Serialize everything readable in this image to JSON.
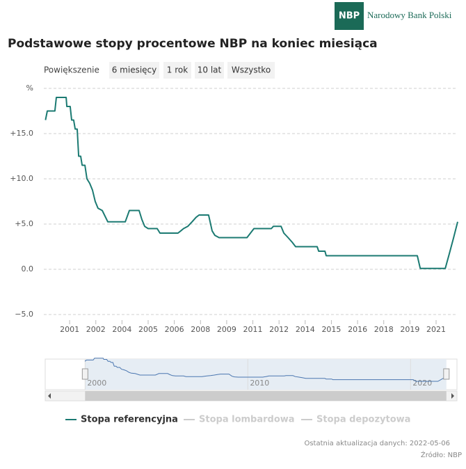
{
  "header": {
    "logo": "NBP",
    "bank_name": "Narodowy Bank Polski"
  },
  "chart_data": {
    "type": "line",
    "title": "Podstawowe stopy procentowe NBP na koniec miesiąca",
    "zoom": {
      "label": "Powiększenie",
      "buttons": [
        "6 miesięcy",
        "1 rok",
        "10 lat",
        "Wszystko"
      ]
    },
    "x": [
      1999.99,
      2000.09,
      2000.5,
      2000.58,
      2001.11,
      2001.15,
      2001.33,
      2001.41,
      2001.52,
      2001.6,
      2001.71,
      2001.79,
      2001.9,
      2001.98,
      2002.13,
      2002.24,
      2002.39,
      2002.54,
      2002.69,
      2002.84,
      2003.07,
      2003.37,
      2004.32,
      2004.54,
      2005.07,
      2005.22,
      2005.37,
      2005.56,
      2006.05,
      2006.2,
      2007.18,
      2007.33,
      2007.48,
      2007.71,
      2007.94,
      2008.16,
      2008.32,
      2008.84,
      2009.03,
      2009.18,
      2009.41,
      2010.92,
      2011.11,
      2011.3,
      2012.24,
      2012.35,
      2012.77,
      2012.92,
      2013.15,
      2013.37,
      2013.56,
      2014.73,
      2014.81,
      2015.15,
      2015.22,
      2020.16,
      2020.32,
      2021.68,
      2021.9,
      2022.13,
      2022.35
    ],
    "series": [
      {
        "name": "Stopa referencyjna",
        "color": "#1b7a72",
        "visible": true,
        "values": [
          16.5,
          17.5,
          17.5,
          19,
          19,
          18,
          18,
          16.5,
          16.5,
          15.5,
          15.5,
          12.5,
          12.5,
          11.5,
          11.5,
          10,
          9.5,
          8.75,
          7.5,
          6.75,
          6.5,
          5.25,
          5.25,
          6.5,
          6.5,
          5.5,
          4.75,
          4.5,
          4.5,
          4,
          4,
          4.25,
          4.5,
          4.75,
          5.25,
          5.75,
          6,
          6,
          4.25,
          3.75,
          3.5,
          3.5,
          4,
          4.5,
          4.5,
          4.75,
          4.75,
          4,
          3.5,
          3,
          2.5,
          2.5,
          2,
          2,
          1.5,
          1.5,
          0.1,
          0.1,
          1.75,
          3.5,
          5.25
        ]
      },
      {
        "name": "Stopa lombardowa",
        "color": "#cccccc",
        "visible": false
      },
      {
        "name": "Stopa depozytowa",
        "color": "#cccccc",
        "visible": false
      }
    ],
    "xlim": [
      1999.9,
      2022.35
    ],
    "xticks": [
      {
        "value": 2001.3,
        "label": "2001"
      },
      {
        "value": 2002.72,
        "label": "2002"
      },
      {
        "value": 2004.14,
        "label": "2004"
      },
      {
        "value": 2005.56,
        "label": "2005"
      },
      {
        "value": 2006.98,
        "label": "2006"
      },
      {
        "value": 2008.4,
        "label": "2008"
      },
      {
        "value": 2009.82,
        "label": "2009"
      },
      {
        "value": 2011.24,
        "label": "2011"
      },
      {
        "value": 2012.66,
        "label": "2012"
      },
      {
        "value": 2014.08,
        "label": "2014"
      },
      {
        "value": 2015.5,
        "label": "2015"
      },
      {
        "value": 2016.92,
        "label": "2016"
      },
      {
        "value": 2018.34,
        "label": "2018"
      },
      {
        "value": 2019.76,
        "label": "2019"
      },
      {
        "value": 2021.18,
        "label": "2021"
      }
    ],
    "ylim": [
      -5,
      20
    ],
    "yticks": [
      {
        "value": -5,
        "label": "−5.0"
      },
      {
        "value": 0,
        "label": "0.0"
      },
      {
        "value": 5,
        "label": "+5.0"
      },
      {
        "value": 10,
        "label": "+10.0"
      },
      {
        "value": 15,
        "label": "+15.0"
      },
      {
        "value": 20,
        "label": "%"
      }
    ],
    "grid": true,
    "navigator": {
      "xlim": [
        1997.55,
        2022.85
      ],
      "xticks": [
        2000,
        2010,
        2020
      ],
      "selection": [
        2000,
        2022.2
      ],
      "color": "#4a76b0"
    }
  },
  "footer": {
    "updated": "Ostatnia aktualizacja danych: 2022-05-06",
    "source": "Źródło: NBP"
  }
}
